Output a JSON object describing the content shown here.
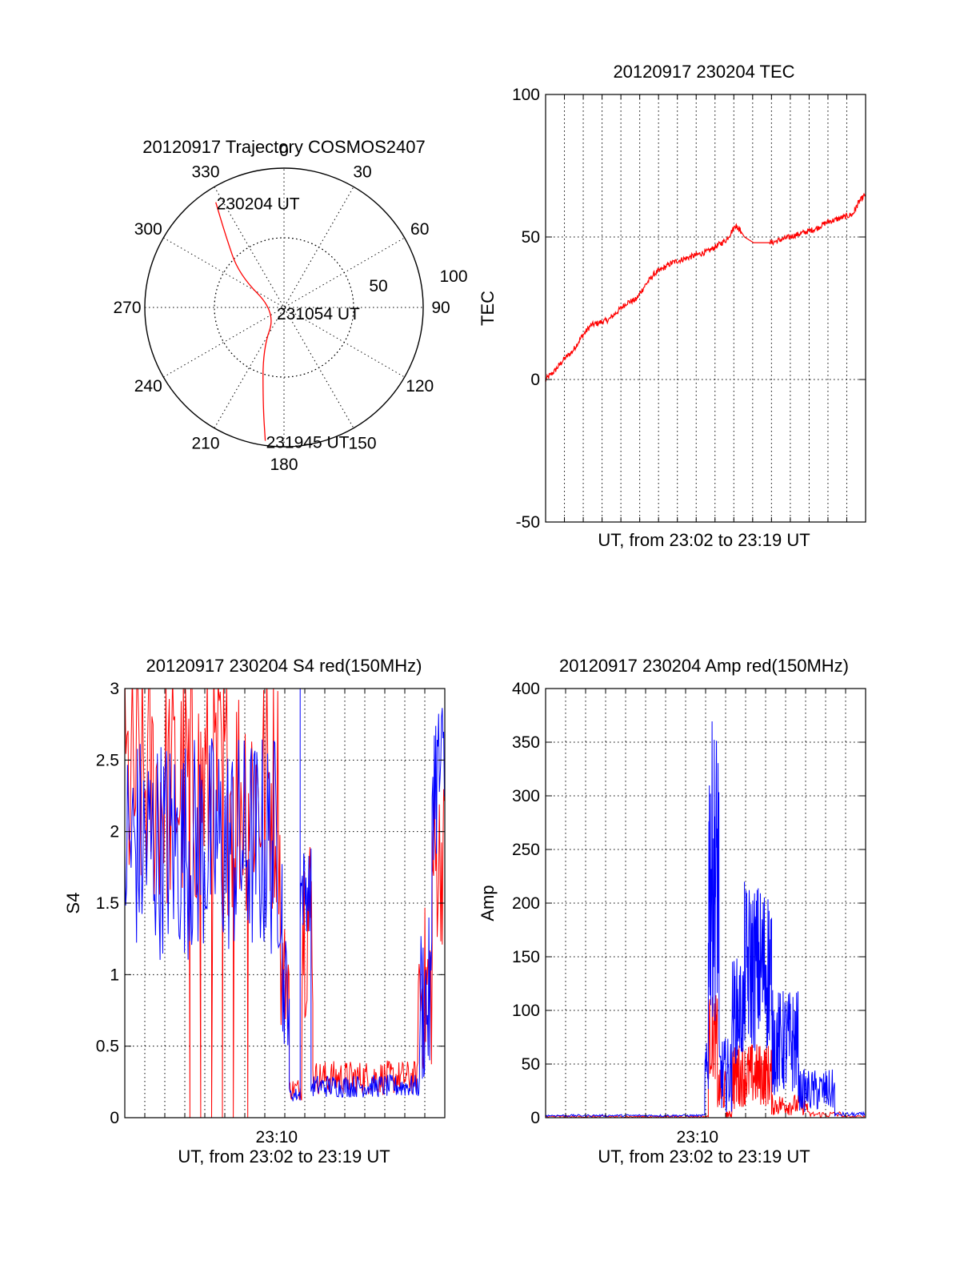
{
  "colors": {
    "red": "#ff0000",
    "blue": "#0000ff",
    "axis": "#000000",
    "background": "#ffffff"
  },
  "chart_data": [
    {
      "id": "trajectory",
      "type": "polar",
      "title": "20120917 Trajectory COSMOS2407",
      "azimuth_labels": [
        "0",
        "30",
        "60",
        "90",
        "120",
        "150",
        "180",
        "210",
        "240",
        "270",
        "300",
        "330"
      ],
      "radial_labels": [
        "50",
        "100"
      ],
      "radial_range": [
        0,
        90
      ],
      "grid": true,
      "series": [
        {
          "color": "red",
          "points": [
            {
              "az": 327,
              "zen": 81
            },
            {
              "az": 321,
              "zen": 60
            },
            {
              "az": 306,
              "zen": 36
            },
            {
              "az": 240,
              "zen": 6
            },
            {
              "az": 207,
              "zen": 30
            },
            {
              "az": 192,
              "zen": 65
            },
            {
              "az": 188,
              "zen": 87
            }
          ]
        }
      ],
      "annotations": [
        {
          "text": "230204 UT",
          "az": 327,
          "zen": 81
        },
        {
          "text": "231054 UT",
          "az": 240,
          "zen": 6
        },
        {
          "text": "231945 UT",
          "az": 188,
          "zen": 87
        }
      ]
    },
    {
      "id": "tec",
      "type": "line",
      "title": "20120917 230204 TEC",
      "xlabel": "UT, from 23:02 to 23:19 UT",
      "ylabel": "TEC",
      "xlim": [
        0,
        17.7
      ],
      "ylim": [
        -50,
        100
      ],
      "yticks": [
        "-50",
        "0",
        "50",
        "100"
      ],
      "grid": true,
      "series": [
        {
          "color": "red",
          "noise": 1.0,
          "x": [
            0,
            0.5,
            1.0,
            1.5,
            2.0,
            2.5,
            3.0,
            3.5,
            4.0,
            4.5,
            5.0,
            5.5,
            6.0,
            6.5,
            7.0,
            7.5,
            8.0,
            8.5,
            9.0,
            9.5,
            10.0,
            10.5,
            10.7,
            11.0,
            11.5,
            12.0,
            12.5,
            13.0,
            13.5,
            14.0,
            14.5,
            15.0,
            15.5,
            16.0,
            16.5,
            17.0,
            17.3,
            17.7
          ],
          "y": [
            0,
            3,
            7,
            10,
            15,
            19,
            20,
            21,
            24,
            27,
            28,
            33,
            37,
            39,
            41,
            42,
            43,
            44,
            45,
            47,
            49,
            54,
            53,
            50,
            48,
            48,
            48,
            49,
            50,
            51,
            52,
            53,
            55,
            56,
            57,
            58,
            62,
            65
          ]
        }
      ]
    },
    {
      "id": "s4",
      "type": "line",
      "title": "20120917 230204 S4 red(150MHz)",
      "xlabel": "UT, from 23:02 to 23:19 UT",
      "ylabel": "S4",
      "xlim": [
        0,
        17.7
      ],
      "ylim": [
        0,
        3
      ],
      "xticks": [
        {
          "x": 8.4,
          "label": "23:10"
        }
      ],
      "yticks": [
        "0",
        "0.5",
        "1",
        "1.5",
        "2",
        "2.5",
        "3"
      ],
      "grid": true,
      "series": [
        {
          "color": "red",
          "segments": [
            {
              "x0": 0.0,
              "x1": 8.6,
              "base": 2.3,
              "amp": 0.9,
              "step": 0.06
            },
            {
              "x0": 8.6,
              "x1": 9.1,
              "base": 1.0,
              "amp": 0.4,
              "step": 0.04
            },
            {
              "x0": 9.1,
              "x1": 9.8,
              "base": 0.2,
              "amp": 0.08,
              "step": 0.04
            },
            {
              "x0": 9.8,
              "x1": 10.4,
              "base": 1.4,
              "amp": 0.7,
              "step": 0.04
            },
            {
              "x0": 10.4,
              "x1": 16.2,
              "base": 0.28,
              "amp": 0.12,
              "step": 0.04
            },
            {
              "x0": 16.2,
              "x1": 17.0,
              "base": 0.9,
              "amp": 0.6,
              "step": 0.04
            },
            {
              "x0": 17.0,
              "x1": 17.7,
              "base": 1.8,
              "amp": 0.6,
              "step": 0.04
            }
          ],
          "spikes": [
            {
              "x": 3.6,
              "y": 0
            },
            {
              "x": 4.2,
              "y": 0
            },
            {
              "x": 4.8,
              "y": 0
            },
            {
              "x": 5.4,
              "y": 0
            },
            {
              "x": 6.0,
              "y": 0
            },
            {
              "x": 6.8,
              "y": 0
            }
          ]
        },
        {
          "color": "blue",
          "segments": [
            {
              "x0": 0.0,
              "x1": 8.7,
              "base": 1.9,
              "amp": 0.8,
              "step": 0.05
            },
            {
              "x0": 8.7,
              "x1": 9.1,
              "base": 0.9,
              "amp": 0.4,
              "step": 0.04
            },
            {
              "x0": 9.1,
              "x1": 9.7,
              "base": 0.16,
              "amp": 0.05,
              "step": 0.04
            },
            {
              "x0": 9.7,
              "x1": 10.3,
              "base": 1.6,
              "amp": 0.3,
              "step": 0.04
            },
            {
              "x0": 10.3,
              "x1": 16.3,
              "base": 0.22,
              "amp": 0.08,
              "step": 0.04
            },
            {
              "x0": 16.3,
              "x1": 17.0,
              "base": 0.8,
              "amp": 0.6,
              "step": 0.04
            },
            {
              "x0": 17.0,
              "x1": 17.7,
              "base": 2.4,
              "amp": 0.6,
              "step": 0.04
            }
          ],
          "spikes": [
            {
              "x": 9.7,
              "y": 3.0
            }
          ]
        }
      ]
    },
    {
      "id": "amp",
      "type": "line",
      "title": "20120917 230204 Amp red(150MHz)",
      "xlabel": "UT, from 23:02 to 23:19 UT",
      "ylabel": "Amp",
      "xlim": [
        0,
        17.7
      ],
      "ylim": [
        0,
        400
      ],
      "xticks": [
        {
          "x": 8.4,
          "label": "23:10"
        }
      ],
      "yticks": [
        "0",
        "50",
        "100",
        "150",
        "200",
        "250",
        "300",
        "350",
        "400"
      ],
      "grid": true,
      "series": [
        {
          "color": "red",
          "segments": [
            {
              "x0": 0.0,
              "x1": 9.0,
              "base": 1,
              "amp": 1,
              "step": 0.05
            },
            {
              "x0": 9.0,
              "x1": 9.5,
              "base": 75,
              "amp": 40,
              "step": 0.02
            },
            {
              "x0": 9.5,
              "x1": 10.0,
              "base": 25,
              "amp": 20,
              "step": 0.02
            },
            {
              "x0": 10.0,
              "x1": 10.3,
              "base": 3,
              "amp": 3,
              "step": 0.02
            },
            {
              "x0": 10.3,
              "x1": 10.7,
              "base": 40,
              "amp": 35,
              "step": 0.02
            },
            {
              "x0": 10.7,
              "x1": 12.5,
              "base": 40,
              "amp": 30,
              "step": 0.02
            },
            {
              "x0": 12.5,
              "x1": 14.5,
              "base": 12,
              "amp": 10,
              "step": 0.03
            },
            {
              "x0": 14.5,
              "x1": 16.5,
              "base": 3,
              "amp": 3,
              "step": 0.05
            },
            {
              "x0": 16.5,
              "x1": 17.7,
              "base": 1,
              "amp": 1,
              "step": 0.05
            }
          ]
        },
        {
          "color": "blue",
          "segments": [
            {
              "x0": 0.0,
              "x1": 8.8,
              "base": 2,
              "amp": 1,
              "step": 0.05
            },
            {
              "x0": 8.8,
              "x1": 9.0,
              "base": 40,
              "amp": 30,
              "step": 0.02
            },
            {
              "x0": 9.0,
              "x1": 9.6,
              "base": 230,
              "amp": 140,
              "step": 0.015
            },
            {
              "x0": 9.6,
              "x1": 10.3,
              "base": 40,
              "amp": 35,
              "step": 0.02
            },
            {
              "x0": 10.3,
              "x1": 11.0,
              "base": 100,
              "amp": 50,
              "step": 0.02
            },
            {
              "x0": 11.0,
              "x1": 12.5,
              "base": 140,
              "amp": 80,
              "step": 0.02
            },
            {
              "x0": 12.5,
              "x1": 14.0,
              "base": 70,
              "amp": 50,
              "step": 0.02
            },
            {
              "x0": 14.0,
              "x1": 16.0,
              "base": 25,
              "amp": 20,
              "step": 0.03
            },
            {
              "x0": 16.0,
              "x1": 17.7,
              "base": 3,
              "amp": 2,
              "step": 0.05
            }
          ]
        }
      ]
    }
  ]
}
